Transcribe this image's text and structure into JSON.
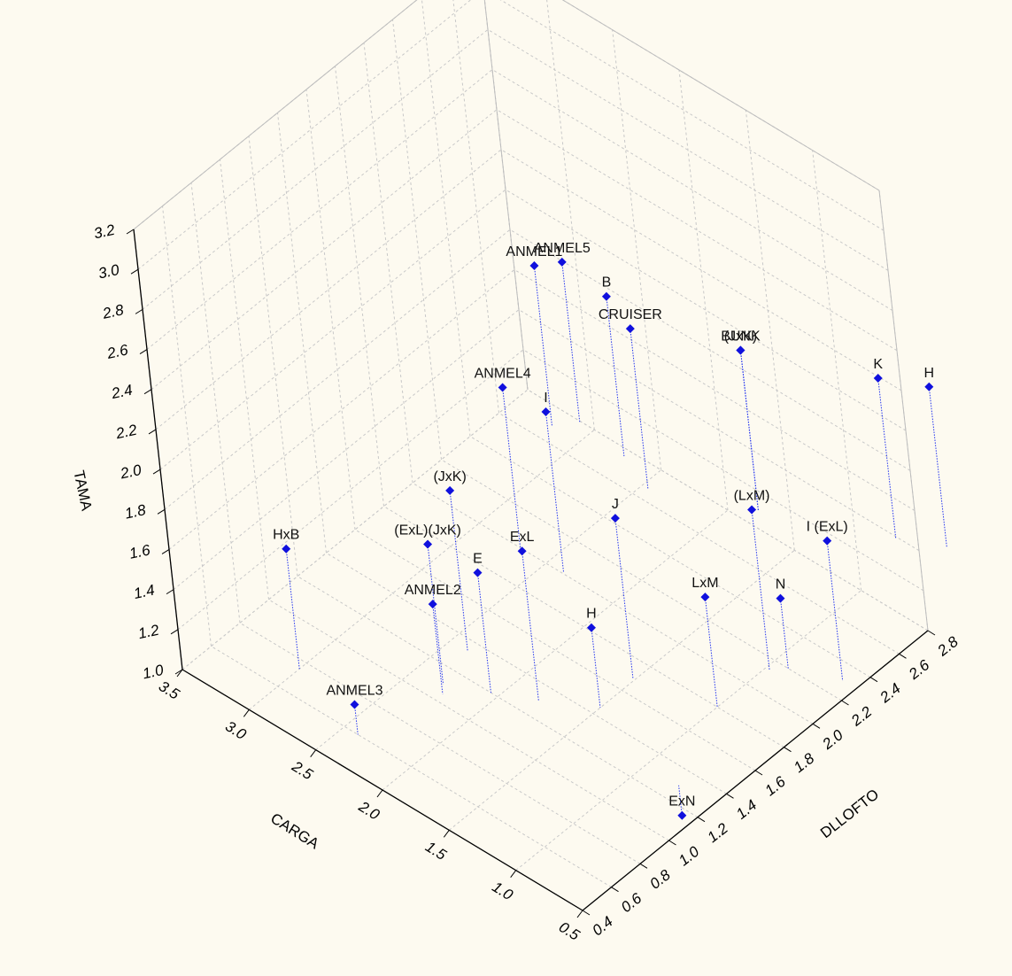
{
  "chart_data": {
    "type": "scatter3d",
    "title": "",
    "axes": {
      "x": {
        "label": "CARGA",
        "range": [
          0.5,
          3.5
        ],
        "ticks": [
          "0.5",
          "1.0",
          "1.5",
          "2.0",
          "2.5",
          "3.0",
          "3.5"
        ]
      },
      "y": {
        "label": "DLLOFTO",
        "range": [
          0.4,
          2.8
        ],
        "ticks": [
          "0.4",
          "0.6",
          "0.8",
          "1.0",
          "1.2",
          "1.4",
          "1.6",
          "1.8",
          "2.0",
          "2.2",
          "2.4",
          "2.6",
          "2.8"
        ]
      },
      "z": {
        "label": "TAMA",
        "range": [
          1.0,
          3.2
        ],
        "ticks": [
          "1.0",
          "1.2",
          "1.4",
          "1.6",
          "1.8",
          "2.0",
          "2.2",
          "2.4",
          "2.6",
          "2.8",
          "3.0",
          "3.2"
        ]
      }
    },
    "grid": true,
    "marker_color": "#1010dd",
    "drop_line_color": "#2233ee",
    "points": [
      {
        "label": "ANMEL5",
        "x": 1.6,
        "y": 1.6,
        "z": 3.1
      },
      {
        "label": "ANMEL1",
        "x": 1.7,
        "y": 1.5,
        "z": 3.1
      },
      {
        "label": "B",
        "x": 1.4,
        "y": 1.7,
        "z": 2.95
      },
      {
        "label": "CRUISER",
        "x": 1.3,
        "y": 1.75,
        "z": 2.8
      },
      {
        "label": "BUNK",
        "x": 1.0,
        "y": 2.2,
        "z": 2.55
      },
      {
        "label": "(JxK)",
        "x": 1.0,
        "y": 2.2,
        "z": 2.55
      },
      {
        "label": "ANMEL4",
        "x": 2.0,
        "y": 1.45,
        "z": 2.4
      },
      {
        "label": "I",
        "x": 1.8,
        "y": 1.55,
        "z": 2.3
      },
      {
        "label": "K",
        "x": 0.55,
        "y": 2.7,
        "z": 2.3
      },
      {
        "label": "H",
        "x": 0.4,
        "y": 2.9,
        "z": 2.2
      },
      {
        "label": "(LxM)",
        "x": 0.8,
        "y": 2.0,
        "z": 1.95
      },
      {
        "label": "(JxK)",
        "x": 2.2,
        "y": 1.2,
        "z": 1.95
      },
      {
        "label": "J",
        "x": 1.4,
        "y": 1.6,
        "z": 1.9
      },
      {
        "label": "I (ExL)",
        "x": 0.6,
        "y": 2.3,
        "z": 1.7
      },
      {
        "label": "ExL",
        "x": 1.8,
        "y": 1.3,
        "z": 1.75
      },
      {
        "label": "(ExL)(JxK)",
        "x": 2.3,
        "y": 1.1,
        "z": 1.7
      },
      {
        "label": "E",
        "x": 2.05,
        "y": 1.2,
        "z": 1.6
      },
      {
        "label": "LxM",
        "x": 1.0,
        "y": 1.8,
        "z": 1.55
      },
      {
        "label": "HxB",
        "x": 3.0,
        "y": 0.75,
        "z": 1.6
      },
      {
        "label": "H",
        "x": 1.5,
        "y": 1.45,
        "z": 1.4
      },
      {
        "label": "N",
        "x": 0.9,
        "y": 2.2,
        "z": 1.35
      },
      {
        "label": "ANMEL2",
        "x": 2.25,
        "y": 1.05,
        "z": 1.45
      },
      {
        "label": "ANMEL3",
        "x": 2.4,
        "y": 0.6,
        "z": 1.15
      },
      {
        "label": "ExN",
        "x": 0.75,
        "y": 1.3,
        "z": 0.85
      }
    ]
  }
}
